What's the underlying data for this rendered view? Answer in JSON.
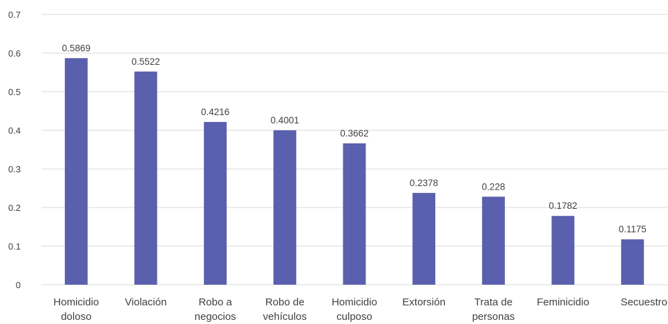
{
  "chart_data": {
    "type": "bar",
    "categories": [
      [
        "Homicidio",
        "doloso"
      ],
      [
        "Violación"
      ],
      [
        "Robo a",
        "negocios"
      ],
      [
        "Robo de",
        "vehículos"
      ],
      [
        "Homicidio",
        "culposo"
      ],
      [
        "Extorsión"
      ],
      [
        "Trata de",
        "personas"
      ],
      [
        "Feminicidio"
      ],
      [
        "Secuestro"
      ]
    ],
    "values": [
      0.5869,
      0.5522,
      0.4216,
      0.4001,
      0.3662,
      0.2378,
      0.228,
      0.1782,
      0.1175
    ],
    "data_labels": [
      "0.5869",
      "0.5522",
      "0.4216",
      "0.4001",
      "0.3662",
      "0.2378",
      "0.228",
      "0.1782",
      "0.1175"
    ],
    "yticks": [
      "0",
      "0.1",
      "0.2",
      "0.3",
      "0.4",
      "0.5",
      "0.6",
      "0.7"
    ],
    "ylim": [
      0,
      0.7
    ],
    "title": "",
    "xlabel": "",
    "ylabel": "",
    "grid": true,
    "bar_color": "#5a60ad"
  }
}
